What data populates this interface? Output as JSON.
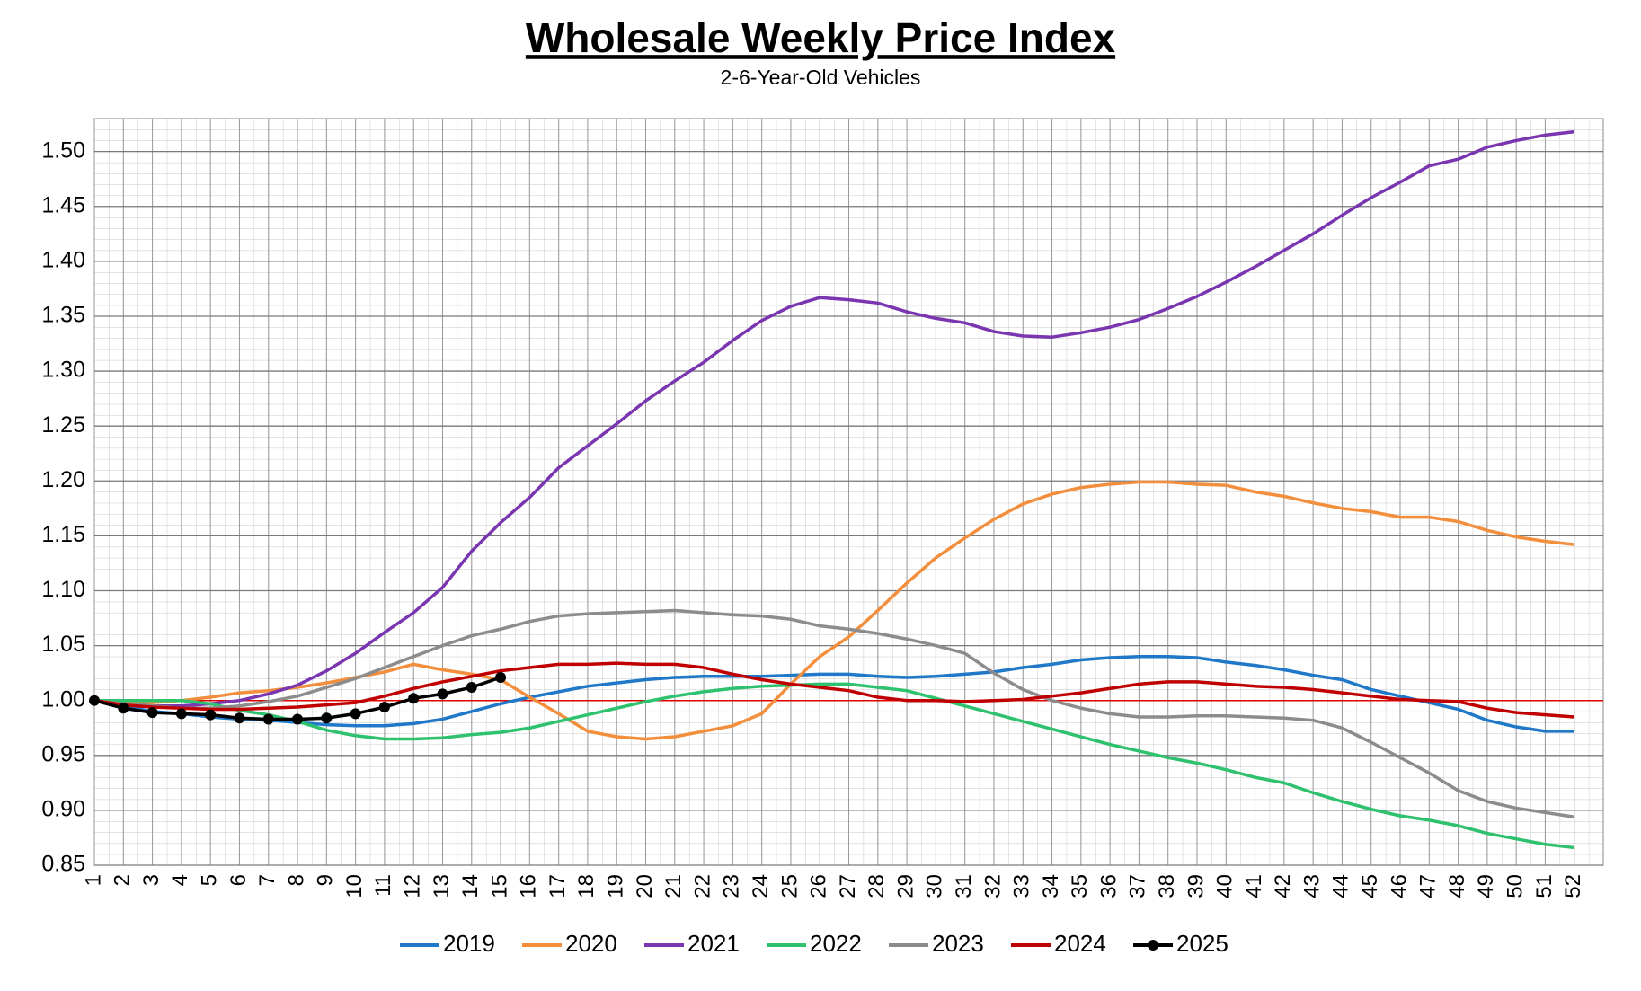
{
  "chart_data": {
    "type": "line",
    "title": "Wholesale Weekly Price Index",
    "subtitle": "2-6-Year-Old Vehicles",
    "x": [
      1,
      2,
      3,
      4,
      5,
      6,
      7,
      8,
      9,
      10,
      11,
      12,
      13,
      14,
      15,
      16,
      17,
      18,
      19,
      20,
      21,
      22,
      23,
      24,
      25,
      26,
      27,
      28,
      29,
      30,
      31,
      32,
      33,
      34,
      35,
      36,
      37,
      38,
      39,
      40,
      41,
      42,
      43,
      44,
      45,
      46,
      47,
      48,
      49,
      50,
      51,
      52
    ],
    "xlim": [
      1,
      53
    ],
    "xticks": [
      1,
      2,
      3,
      4,
      5,
      6,
      7,
      8,
      9,
      10,
      11,
      12,
      13,
      14,
      15,
      16,
      17,
      18,
      19,
      20,
      21,
      22,
      23,
      24,
      25,
      26,
      27,
      28,
      29,
      30,
      31,
      32,
      33,
      34,
      35,
      36,
      37,
      38,
      39,
      40,
      41,
      42,
      43,
      44,
      45,
      46,
      47,
      48,
      49,
      50,
      51,
      52
    ],
    "ylim": [
      0.85,
      1.53
    ],
    "yticks": [
      0.85,
      {
        "value": 0.9,
        "label": "0.90"
      },
      0.95,
      {
        "value": 1.0,
        "label": "1.00"
      },
      1.05,
      {
        "value": 1.1,
        "label": "1.10"
      },
      1.15,
      {
        "value": 1.2,
        "label": "1.20"
      },
      1.25,
      {
        "value": 1.3,
        "label": "1.30"
      },
      1.35,
      {
        "value": 1.4,
        "label": "1.40"
      },
      1.45,
      {
        "value": 1.5,
        "label": "1.50"
      }
    ],
    "grid": true,
    "reference_line": {
      "value": 1.0,
      "color": "#e00000"
    },
    "legend": "bottom",
    "series": [
      {
        "name": "2019",
        "color": "#1f78c8",
        "values": [
          1.0,
          0.995,
          0.99,
          0.988,
          0.985,
          0.983,
          0.982,
          0.98,
          0.978,
          0.977,
          0.977,
          0.979,
          0.983,
          0.99,
          0.997,
          1.003,
          1.008,
          1.013,
          1.016,
          1.019,
          1.021,
          1.022,
          1.022,
          1.022,
          1.023,
          1.024,
          1.024,
          1.022,
          1.021,
          1.022,
          1.024,
          1.026,
          1.03,
          1.033,
          1.037,
          1.039,
          1.04,
          1.04,
          1.039,
          1.035,
          1.032,
          1.028,
          1.023,
          1.019,
          1.01,
          1.004,
          0.998,
          0.992,
          0.982,
          0.976,
          0.972,
          0.972
        ]
      },
      {
        "name": "2020",
        "color": "#f28e3c",
        "values": [
          1.0,
          0.998,
          0.998,
          1.0,
          1.003,
          1.007,
          1.009,
          1.012,
          1.016,
          1.021,
          1.026,
          1.033,
          1.028,
          1.024,
          1.019,
          1.003,
          0.988,
          0.972,
          0.967,
          0.965,
          0.967,
          0.972,
          0.977,
          0.988,
          1.015,
          1.04,
          1.058,
          1.082,
          1.107,
          1.13,
          1.148,
          1.165,
          1.179,
          1.188,
          1.194,
          1.197,
          1.199,
          1.199,
          1.197,
          1.196,
          1.19,
          1.186,
          1.18,
          1.175,
          1.172,
          1.167,
          1.167,
          1.163,
          1.155,
          1.149,
          1.145,
          1.142
        ]
      },
      {
        "name": "2021",
        "color": "#7a35b0",
        "values": [
          1.0,
          0.997,
          0.995,
          0.995,
          0.997,
          1.0,
          1.006,
          1.014,
          1.027,
          1.043,
          1.062,
          1.08,
          1.103,
          1.136,
          1.162,
          1.185,
          1.212,
          1.232,
          1.252,
          1.273,
          1.291,
          1.308,
          1.328,
          1.346,
          1.359,
          1.367,
          1.365,
          1.362,
          1.354,
          1.348,
          1.344,
          1.336,
          1.332,
          1.331,
          1.335,
          1.34,
          1.347,
          1.357,
          1.368,
          1.381,
          1.395,
          1.41,
          1.425,
          1.442,
          1.458,
          1.472,
          1.487,
          1.493,
          1.504,
          1.51,
          1.515,
          1.518
        ]
      },
      {
        "name": "2022",
        "color": "#2ec16e",
        "values": [
          1.0,
          1.0,
          1.0,
          1.0,
          0.997,
          0.991,
          0.987,
          0.981,
          0.973,
          0.968,
          0.965,
          0.965,
          0.966,
          0.969,
          0.971,
          0.975,
          0.981,
          0.987,
          0.993,
          0.999,
          1.004,
          1.008,
          1.011,
          1.013,
          1.014,
          1.015,
          1.015,
          1.012,
          1.009,
          1.002,
          0.995,
          0.988,
          0.981,
          0.974,
          0.967,
          0.96,
          0.954,
          0.948,
          0.943,
          0.937,
          0.93,
          0.925,
          0.916,
          0.908,
          0.901,
          0.895,
          0.891,
          0.886,
          0.879,
          0.874,
          0.869,
          0.866
        ]
      },
      {
        "name": "2023",
        "color": "#8c8c8c",
        "values": [
          1.0,
          0.997,
          0.995,
          0.993,
          0.993,
          0.995,
          0.999,
          1.004,
          1.012,
          1.02,
          1.03,
          1.04,
          1.05,
          1.059,
          1.065,
          1.072,
          1.077,
          1.079,
          1.08,
          1.081,
          1.082,
          1.08,
          1.078,
          1.077,
          1.074,
          1.068,
          1.065,
          1.061,
          1.056,
          1.05,
          1.043,
          1.025,
          1.01,
          1.0,
          0.993,
          0.988,
          0.985,
          0.985,
          0.986,
          0.986,
          0.985,
          0.984,
          0.982,
          0.975,
          0.962,
          0.948,
          0.934,
          0.918,
          0.908,
          0.902,
          0.898,
          0.894
        ]
      },
      {
        "name": "2024",
        "color": "#c00000",
        "values": [
          1.0,
          0.996,
          0.994,
          0.993,
          0.992,
          0.992,
          0.993,
          0.994,
          0.996,
          0.998,
          1.004,
          1.011,
          1.017,
          1.022,
          1.027,
          1.03,
          1.033,
          1.033,
          1.034,
          1.033,
          1.033,
          1.03,
          1.024,
          1.019,
          1.015,
          1.012,
          1.009,
          1.003,
          1.0,
          1.0,
          0.999,
          1.0,
          1.001,
          1.004,
          1.007,
          1.011,
          1.015,
          1.017,
          1.017,
          1.015,
          1.013,
          1.012,
          1.01,
          1.007,
          1.004,
          1.001,
          1.0,
          0.999,
          0.993,
          0.989,
          0.987,
          0.985
        ]
      },
      {
        "name": "2025",
        "color": "#000000",
        "markers": true,
        "values": [
          1.0,
          0.993,
          0.989,
          0.988,
          0.987,
          0.984,
          0.983,
          0.983,
          0.984,
          0.988,
          0.994,
          1.002,
          1.006,
          1.012,
          1.021,
          null,
          null,
          null,
          null,
          null,
          null,
          null,
          null,
          null,
          null,
          null,
          null,
          null,
          null,
          null,
          null,
          null,
          null,
          null,
          null,
          null,
          null,
          null,
          null,
          null,
          null,
          null,
          null,
          null,
          null,
          null,
          null,
          null,
          null,
          null,
          null,
          null
        ]
      }
    ]
  }
}
